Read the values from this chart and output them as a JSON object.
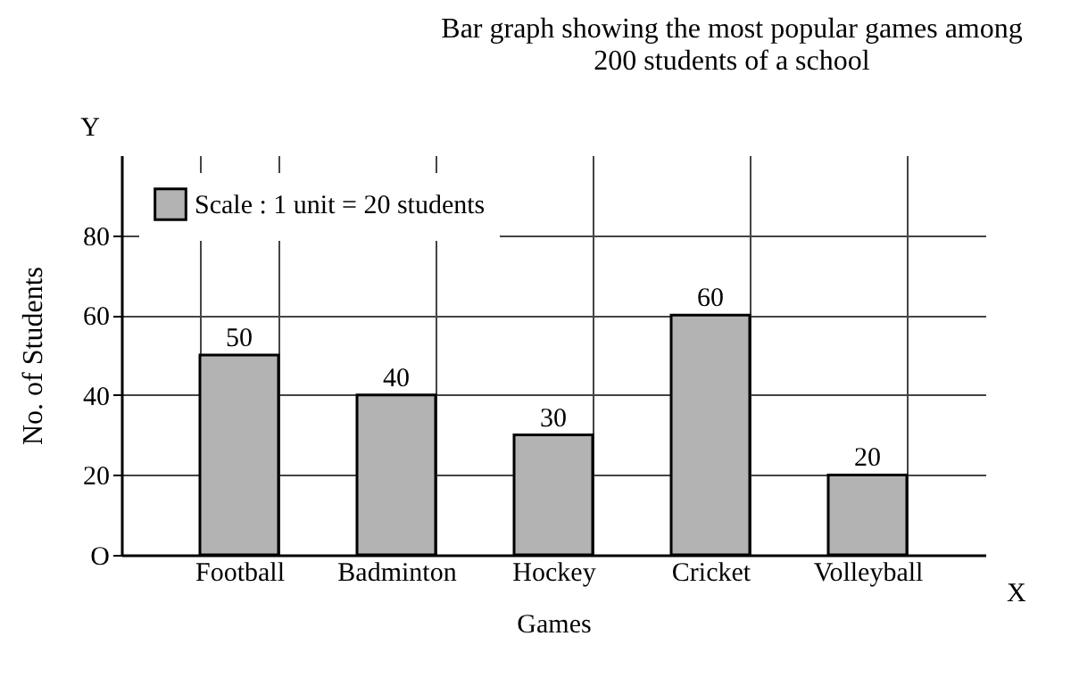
{
  "chart_data": {
    "type": "bar",
    "title": "Bar graph showing the most popular games among 200 students of a school",
    "xlabel": "Games",
    "ylabel": "No. of Students",
    "categories": [
      "Football",
      "Badminton",
      "Hockey",
      "Cricket",
      "Volleyball"
    ],
    "series": [
      {
        "name": "Scale : 1 unit = 20 students",
        "color": "#b3b3b3",
        "values": [
          50,
          40,
          30,
          60,
          20
        ]
      }
    ],
    "ylim": [
      0,
      100
    ],
    "yticks": [
      {
        "value": 0,
        "label": "O"
      },
      20,
      40,
      60,
      80
    ],
    "data_labels": true,
    "grid": true,
    "legend": "top left",
    "annotations": [
      "Y",
      "X"
    ]
  }
}
